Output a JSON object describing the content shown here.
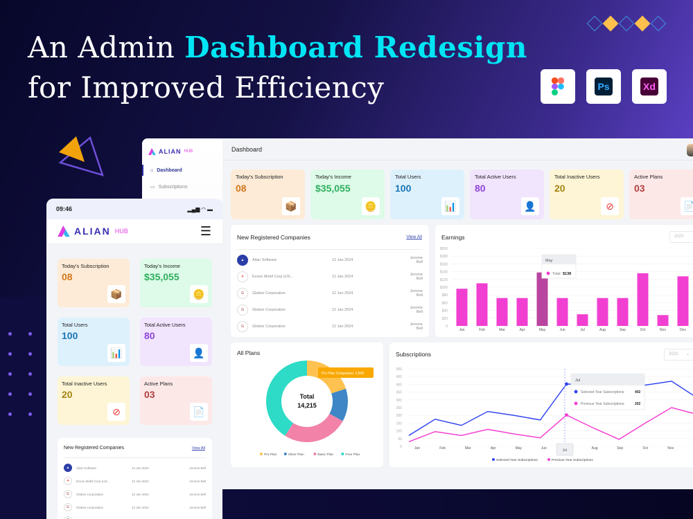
{
  "hero": {
    "title_line1_plain": "An Admin ",
    "title_line1_accent": "Dashboard Redesign",
    "title_line2": "for Improved Efficiency",
    "tools": [
      {
        "name": "figma-icon",
        "label": ""
      },
      {
        "name": "photoshop-icon",
        "label": "Ps"
      },
      {
        "name": "xd-icon",
        "label": "Xd"
      }
    ]
  },
  "brand": {
    "name": "ALIAN",
    "suffix": "HUB"
  },
  "sidebar": {
    "items": [
      {
        "label": "Dashboard",
        "icon": "home-icon",
        "active": true
      },
      {
        "label": "Subscriptions",
        "icon": "calendar-icon",
        "active": false
      }
    ]
  },
  "header": {
    "title": "Dashboard"
  },
  "stats": [
    {
      "label": "Today's Subscription",
      "value": "08",
      "color": "#d4771c",
      "bg": "#fdebd7",
      "icon": "box-icon"
    },
    {
      "label": "Today's Income",
      "value": "$35,055",
      "color": "#2fae5f",
      "bg": "#ddfbe8",
      "icon": "coins-icon"
    },
    {
      "label": "Total Users",
      "value": "100",
      "color": "#1a76b3",
      "bg": "#ddf1fd",
      "icon": "users-board-icon"
    },
    {
      "label": "Total Active Users",
      "value": "80",
      "color": "#9047d8",
      "bg": "#f1e4fd",
      "icon": "user-check-icon"
    },
    {
      "label": "Total Inactive Users",
      "value": "20",
      "color": "#a68412",
      "bg": "#fdf5d5",
      "icon": "user-blocked-icon"
    },
    {
      "label": "Active Plans",
      "value": "03",
      "color": "#b04040",
      "bg": "#fde8e8",
      "icon": "document-icon"
    }
  ],
  "companies": {
    "title": "New Registered Companies",
    "view_all": "View All",
    "rows": [
      {
        "name": "Alian Software",
        "date": "12 Jan 2024",
        "owner": "Jerome Bell",
        "logo": "alian-logo"
      },
      {
        "name": "Exxon Mobil Corp (US...",
        "date": "12 Jan 2024",
        "owner": "Jerome Bell",
        "logo": "pegasus-logo"
      },
      {
        "name": "Globex Corporation",
        "date": "12 Jan 2024",
        "owner": "Jerome Bell",
        "logo": "globex-logo"
      },
      {
        "name": "Globex Corporation",
        "date": "12 Jan 2024",
        "owner": "Jerome Bell",
        "logo": "globex-logo"
      },
      {
        "name": "Globex Corporation",
        "date": "12 Jan 2024",
        "owner": "Jerome Bell",
        "logo": "globex-logo"
      }
    ]
  },
  "earnings": {
    "title": "Earnings",
    "year": "2023",
    "tooltip": {
      "month": "May",
      "label": "Total",
      "value": "$138"
    }
  },
  "plans": {
    "title": "All Plans",
    "center_label": "Total",
    "center_value": "14,215",
    "tooltip": "Pro Plan Companies: 2,842"
  },
  "subscriptions": {
    "title": "Subscriptions",
    "year": "2023",
    "tooltip": {
      "month": "Jul",
      "selected_label": "Selected Year Subscriptions:",
      "selected_value": "402",
      "previous_label": "Previous Year Subscriptions:",
      "previous_value": "202"
    }
  },
  "mobile": {
    "time": "09:46",
    "companies_title": "New Registered Companies",
    "view_all": "View All"
  },
  "chart_data": [
    {
      "type": "bar",
      "title": "Earnings",
      "categories": [
        "Jan",
        "Feb",
        "Mar",
        "Apr",
        "May",
        "Jun",
        "Jul",
        "Aug",
        "Sep",
        "Oct",
        "Nov",
        "Dec"
      ],
      "values": [
        96,
        110,
        72,
        72,
        138,
        72,
        30,
        72,
        72,
        136,
        28,
        128
      ],
      "ylabel": "",
      "xlabel": "",
      "yticks": [
        "0",
        "$20",
        "$40",
        "$60",
        "$80",
        "$100",
        "$120",
        "$140",
        "$160",
        "$180",
        "$200"
      ],
      "ylim": [
        0,
        200
      ],
      "highlight": "May",
      "color": "#f13fd1",
      "grid": true
    },
    {
      "type": "pie",
      "title": "All Plans",
      "donut": true,
      "labels": [
        "Pro Plan",
        "Silver Plan",
        "Basic Plan",
        "Free Plan"
      ],
      "values": [
        2842,
        1850,
        3700,
        5823
      ],
      "colors": [
        "#ffc14f",
        "#3e86c6",
        "#f282a8",
        "#2ddbc6"
      ],
      "total": 14215,
      "legend_position": "bottom"
    },
    {
      "type": "line",
      "title": "Subscriptions",
      "categories": [
        "Jan",
        "Feb",
        "Mar",
        "Apr",
        "May",
        "Jun",
        "Jul",
        "Aug",
        "Sep",
        "Oct",
        "Nov",
        "Dec"
      ],
      "series": [
        {
          "name": "Selected Year Subscriptions",
          "color": "#3347f0",
          "values": [
            70,
            175,
            135,
            225,
            200,
            170,
            402,
            400,
            380,
            395,
            420,
            310
          ]
        },
        {
          "name": "Previous Year Subscriptions",
          "color": "#f53fd3",
          "values": [
            30,
            95,
            70,
            110,
            80,
            55,
            202,
            120,
            45,
            150,
            250,
            205
          ]
        }
      ],
      "yticks": [
        "0",
        "50",
        "100",
        "150",
        "200",
        "250",
        "300",
        "350",
        "400",
        "450",
        "500"
      ],
      "ylim": [
        0,
        500
      ],
      "legend_position": "bottom",
      "grid": true
    }
  ]
}
